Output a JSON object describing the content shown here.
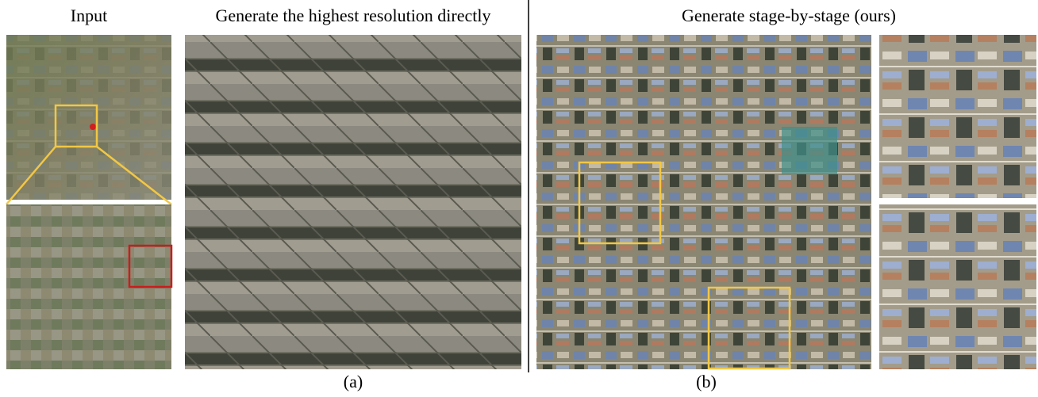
{
  "header": {
    "input": "Input",
    "direct": "Generate the highest resolution directly",
    "ours": "Generate stage-by-stage (ours)"
  },
  "captions": {
    "a": "(a)",
    "b": "(b)"
  }
}
